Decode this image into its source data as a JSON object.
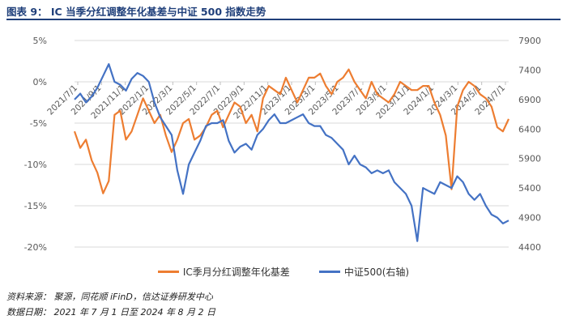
{
  "title": "图表 9： IC 当季分红调整年化基差与中证 500 指数走势",
  "source_line": "资料来源： 聚源，同花顺 iFinD，信达证券研发中心",
  "date_line": "数据日期： 2021 年 7 月 1 日至 2024 年 8 月 2 日",
  "chart_data": {
    "type": "line",
    "x_labels": [
      "2021/7/1",
      "2021/9/1",
      "2021/11/1",
      "2022/1/1",
      "2022/3/1",
      "2022/5/1",
      "2022/7/1",
      "2022/9/1",
      "2022/11/1",
      "2023/1/1",
      "2023/3/1",
      "2023/5/1",
      "2023/7/1",
      "2023/9/1",
      "2023/11/1",
      "2024/1/1",
      "2024/3/1",
      "2024/5/1",
      "2024/7/1"
    ],
    "y_left": {
      "ticks": [
        "5%",
        "0%",
        "-5%",
        "-10%",
        "-15%",
        "-20%"
      ],
      "min": -20,
      "max": 5
    },
    "y_right": {
      "ticks": [
        "7900",
        "7400",
        "6900",
        "6400",
        "5900",
        "5400",
        "4900",
        "4400"
      ],
      "min": 4400,
      "max": 7900
    },
    "series": [
      {
        "name": "IC季月分红调整年化基差",
        "axis": "left",
        "color": "#ed7d31",
        "values": [
          -6.0,
          -8.0,
          -7.0,
          -9.5,
          -11.0,
          -13.5,
          -12.0,
          -4.0,
          -3.5,
          -7.0,
          -6.0,
          -4.0,
          -2.0,
          -3.5,
          -5.0,
          -4.0,
          -6.5,
          -8.5,
          -7.0,
          -5.0,
          -4.5,
          -7.0,
          -6.5,
          -5.5,
          -4.0,
          -3.5,
          -5.5,
          -4.0,
          -2.5,
          -3.0,
          -5.0,
          -4.0,
          -6.0,
          -2.0,
          -0.5,
          -1.0,
          -1.5,
          0.5,
          -1.0,
          -2.5,
          -1.0,
          0.5,
          0.5,
          1.0,
          -0.5,
          -1.5,
          0.0,
          0.5,
          1.5,
          0.0,
          -1.0,
          -2.0,
          0.0,
          -1.5,
          -2.0,
          -2.5,
          -1.5,
          0.0,
          -0.5,
          -1.0,
          -1.0,
          -0.5,
          -0.5,
          -2.5,
          -4.0,
          -6.5,
          -13.0,
          -3.0,
          -1.0,
          0.0,
          -0.5,
          -1.5,
          -2.0,
          -3.0,
          -5.5,
          -6.0,
          -4.5
        ]
      },
      {
        "name": "中证500(右轴)",
        "axis": "right",
        "color": "#4472c4",
        "values": [
          6900,
          7000,
          6850,
          6950,
          7100,
          7300,
          7500,
          7200,
          7150,
          7050,
          7250,
          7350,
          7300,
          7200,
          6850,
          6600,
          6450,
          6300,
          5700,
          5300,
          5800,
          6000,
          6200,
          6450,
          6500,
          6500,
          6550,
          6200,
          6000,
          6100,
          6150,
          6050,
          6300,
          6400,
          6550,
          6650,
          6500,
          6500,
          6550,
          6600,
          6650,
          6500,
          6450,
          6450,
          6300,
          6250,
          6150,
          6050,
          5800,
          5950,
          5800,
          5750,
          5650,
          5700,
          5650,
          5700,
          5500,
          5400,
          5300,
          5100,
          4500,
          5400,
          5350,
          5300,
          5500,
          5450,
          5400,
          5600,
          5500,
          5300,
          5200,
          5300,
          5100,
          4950,
          4900,
          4800,
          4850
        ]
      }
    ],
    "grid": "left-axis horizontal gridlines",
    "legend_position": "bottom"
  }
}
